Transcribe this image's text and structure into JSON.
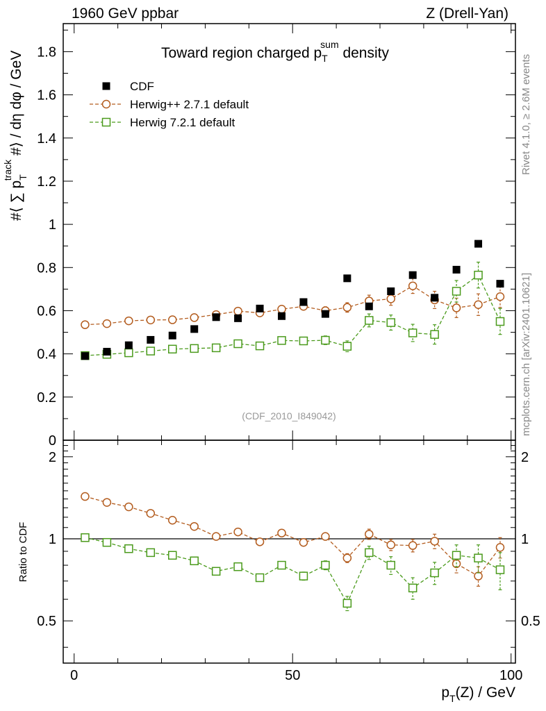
{
  "header": {
    "left": "1960 GeV ppbar",
    "right": "Z (Drell-Yan)"
  },
  "side_labels": {
    "rivet": "Rivet 4.1.0, ≥ 2.6M events",
    "mcplots": "mcplots.cern.ch [arXiv:2401.10621]"
  },
  "chart_data": {
    "type": "scatter",
    "title_main": "Toward region charged p",
    "title_sub": "T",
    "title_sup": "sum",
    "title_tail": " density",
    "watermark": "(CDF_2010_I849042)",
    "ylabel": "#⟨ ∑ p_T^track #⟩ / dη dφ / GeV",
    "ylabel_parts": {
      "pre": "#⟨ ∑ p",
      "sub": "T",
      "sup": "track",
      "post": " #⟩ / dη dφ / GeV"
    },
    "ratio_ylabel": "Ratio to CDF",
    "xlabel": "p_T(Z) / GeV",
    "xlabel_parts": {
      "pre": "p",
      "sub": "T",
      "post": "(Z) / GeV"
    },
    "xlim": [
      -2.5,
      101
    ],
    "ylim": [
      0,
      1.93
    ],
    "ratio_ylim": [
      0.35,
      2.3
    ],
    "x_ticks": [
      0,
      50,
      100
    ],
    "y_ticks": [
      0,
      0.2,
      0.4,
      0.6,
      0.8,
      1,
      1.2,
      1.4,
      1.6,
      1.8
    ],
    "y_tick_labels": [
      "0",
      "0.2",
      "0.4",
      "0.6",
      "0.8",
      "1",
      "1.2",
      "1.4",
      "1.6",
      "1.8"
    ],
    "ratio_ticks": [
      0.5,
      1,
      2
    ],
    "ratio_tick_labels": [
      "0.5",
      "1",
      "2"
    ],
    "x": [
      2.5,
      7.5,
      12.5,
      17.5,
      22.5,
      27.5,
      32.5,
      37.5,
      42.5,
      47.5,
      52.5,
      57.5,
      62.5,
      67.5,
      72.5,
      77.5,
      82.5,
      87.5,
      92.5,
      97.5
    ],
    "series": [
      {
        "name": "CDF",
        "marker": "filled-square",
        "color": "#000000",
        "values": [
          0.39,
          0.41,
          0.44,
          0.465,
          0.485,
          0.515,
          0.57,
          0.565,
          0.61,
          0.575,
          0.64,
          0.585,
          0.75,
          0.62,
          0.69,
          0.765,
          0.66,
          0.79,
          0.91,
          0.725
        ],
        "errors": [
          0.01,
          0.01,
          0.01,
          0.01,
          0.01,
          0.01,
          0.01,
          0.01,
          0.012,
          0.012,
          0.013,
          0.013,
          0.015,
          0.015,
          0.017,
          0.018,
          0.02,
          0.02,
          0.025,
          0.025
        ]
      },
      {
        "name": "Herwig++ 2.7.1 default",
        "marker": "open-circle",
        "color": "#b35c1e",
        "values": [
          0.535,
          0.54,
          0.553,
          0.557,
          0.558,
          0.568,
          0.582,
          0.598,
          0.59,
          0.607,
          0.62,
          0.6,
          0.615,
          0.645,
          0.655,
          0.715,
          0.65,
          0.613,
          0.628,
          0.665
        ],
        "errors": [
          0.004,
          0.004,
          0.004,
          0.005,
          0.005,
          0.006,
          0.007,
          0.008,
          0.009,
          0.012,
          0.015,
          0.018,
          0.022,
          0.027,
          0.03,
          0.035,
          0.04,
          0.045,
          0.05,
          0.05
        ],
        "ratio": [
          1.43,
          1.36,
          1.31,
          1.24,
          1.17,
          1.11,
          1.02,
          1.06,
          0.975,
          1.05,
          0.97,
          1.02,
          0.85,
          1.04,
          0.95,
          0.945,
          0.98,
          0.81,
          0.73,
          0.93
        ],
        "ratio_errors": [
          0.01,
          0.01,
          0.01,
          0.012,
          0.012,
          0.013,
          0.014,
          0.015,
          0.016,
          0.02,
          0.024,
          0.03,
          0.032,
          0.045,
          0.045,
          0.05,
          0.06,
          0.06,
          0.06,
          0.08
        ]
      },
      {
        "name": "Herwig 7.2.1 default",
        "marker": "open-square",
        "color": "#4a9a1b",
        "values": [
          0.392,
          0.398,
          0.405,
          0.413,
          0.422,
          0.425,
          0.428,
          0.447,
          0.437,
          0.462,
          0.46,
          0.463,
          0.435,
          0.555,
          0.545,
          0.497,
          0.49,
          0.69,
          0.765,
          0.55
        ],
        "errors": [
          0.004,
          0.004,
          0.004,
          0.005,
          0.005,
          0.006,
          0.007,
          0.008,
          0.009,
          0.012,
          0.015,
          0.02,
          0.025,
          0.03,
          0.035,
          0.04,
          0.045,
          0.05,
          0.06,
          0.06
        ],
        "ratio": [
          1.01,
          0.97,
          0.92,
          0.89,
          0.87,
          0.83,
          0.76,
          0.79,
          0.72,
          0.8,
          0.73,
          0.8,
          0.58,
          0.89,
          0.8,
          0.66,
          0.75,
          0.87,
          0.85,
          0.77
        ],
        "ratio_errors": [
          0.01,
          0.01,
          0.01,
          0.012,
          0.012,
          0.013,
          0.014,
          0.016,
          0.018,
          0.02,
          0.025,
          0.03,
          0.035,
          0.05,
          0.06,
          0.06,
          0.07,
          0.08,
          0.1,
          0.12
        ]
      }
    ],
    "legend": [
      "CDF",
      "Herwig++ 2.7.1 default",
      "Herwig 7.2.1 default"
    ],
    "legend_position": "top-left"
  }
}
